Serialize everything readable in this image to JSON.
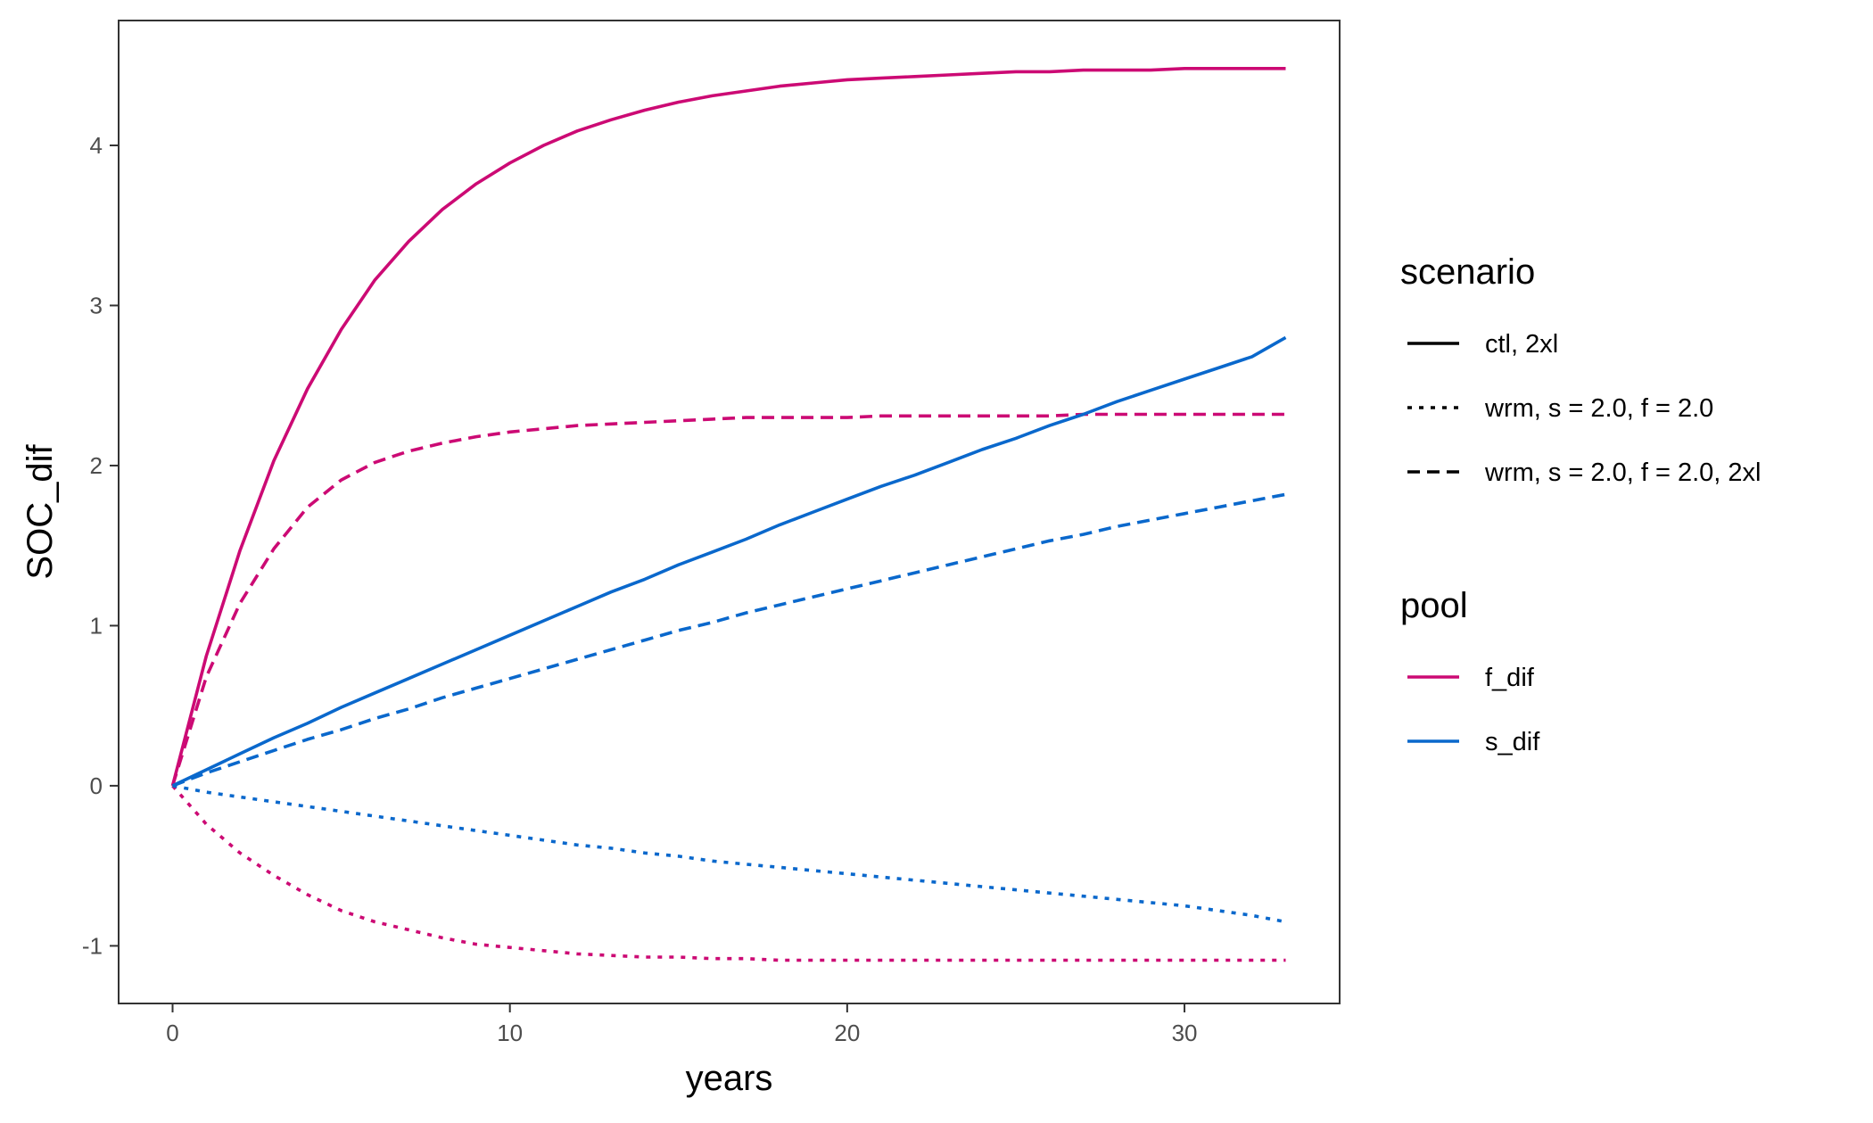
{
  "chart_data": {
    "type": "line",
    "title": "",
    "xlabel": "years",
    "ylabel": "SOC_dif",
    "xlim": [
      -1.6,
      34.6
    ],
    "ylim": [
      -1.36,
      4.78
    ],
    "x_ticks": [
      0,
      10,
      20,
      30
    ],
    "x_tick_labels": [
      "0",
      "10",
      "20",
      "30"
    ],
    "y_ticks": [
      -1,
      0,
      1,
      2,
      3,
      4
    ],
    "y_tick_labels": [
      "-1",
      "0",
      "1",
      "2",
      "3",
      "4"
    ],
    "grid": false,
    "legend_placement": "right",
    "colors": {
      "f_dif": "#cc0a74",
      "s_dif": "#0a68cc",
      "legend_key_linetype": "#000000",
      "axis": "#333333",
      "tick_text": "#4d4d4d"
    },
    "legends": {
      "linetype": {
        "title": "scenario",
        "entries": [
          {
            "label": "ctl, 2xl",
            "style": "solid"
          },
          {
            "label": "wrm, s = 2.0, f = 2.0",
            "style": "dotted"
          },
          {
            "label": "wrm, s = 2.0, f = 2.0, 2xl",
            "style": "dashed"
          }
        ]
      },
      "color": {
        "title": "pool",
        "entries": [
          {
            "label": "f_dif",
            "color": "#cc0a74"
          },
          {
            "label": "s_dif",
            "color": "#0a68cc"
          }
        ]
      }
    },
    "x": [
      0,
      1,
      2,
      3,
      4,
      5,
      6,
      7,
      8,
      9,
      10,
      11,
      12,
      13,
      14,
      15,
      16,
      17,
      18,
      19,
      20,
      21,
      22,
      23,
      24,
      25,
      26,
      27,
      28,
      29,
      30,
      31,
      32,
      33
    ],
    "series": [
      {
        "pool": "f_dif",
        "scenario": "ctl, 2xl",
        "color": "#cc0a74",
        "style": "solid",
        "values": [
          0,
          0.81,
          1.47,
          2.03,
          2.48,
          2.85,
          3.16,
          3.4,
          3.6,
          3.76,
          3.89,
          4.0,
          4.09,
          4.16,
          4.22,
          4.27,
          4.31,
          4.34,
          4.37,
          4.39,
          4.41,
          4.42,
          4.43,
          4.44,
          4.45,
          4.46,
          4.46,
          4.47,
          4.47,
          4.47,
          4.48,
          4.48,
          4.48,
          4.48
        ]
      },
      {
        "pool": "f_dif",
        "scenario": "wrm, s = 2.0, f = 2.0, 2xl",
        "color": "#cc0a74",
        "style": "dashed",
        "values": [
          0,
          0.68,
          1.14,
          1.48,
          1.74,
          1.91,
          2.02,
          2.09,
          2.14,
          2.18,
          2.21,
          2.23,
          2.25,
          2.26,
          2.27,
          2.28,
          2.29,
          2.3,
          2.3,
          2.3,
          2.3,
          2.31,
          2.31,
          2.31,
          2.31,
          2.31,
          2.31,
          2.32,
          2.32,
          2.32,
          2.32,
          2.32,
          2.32,
          2.32
        ]
      },
      {
        "pool": "f_dif",
        "scenario": "wrm, s = 2.0, f = 2.0",
        "color": "#cc0a74",
        "style": "dotted",
        "values": [
          0,
          -0.24,
          -0.42,
          -0.56,
          -0.68,
          -0.78,
          -0.85,
          -0.9,
          -0.95,
          -0.99,
          -1.01,
          -1.03,
          -1.05,
          -1.06,
          -1.07,
          -1.07,
          -1.08,
          -1.08,
          -1.09,
          -1.09,
          -1.09,
          -1.09,
          -1.09,
          -1.09,
          -1.09,
          -1.09,
          -1.09,
          -1.09,
          -1.09,
          -1.09,
          -1.09,
          -1.09,
          -1.09,
          -1.09
        ]
      },
      {
        "pool": "s_dif",
        "scenario": "ctl, 2xl",
        "color": "#0a68cc",
        "style": "solid",
        "values": [
          0,
          0.1,
          0.2,
          0.3,
          0.39,
          0.49,
          0.58,
          0.67,
          0.76,
          0.85,
          0.94,
          1.03,
          1.12,
          1.21,
          1.29,
          1.38,
          1.46,
          1.54,
          1.63,
          1.71,
          1.79,
          1.87,
          1.94,
          2.02,
          2.1,
          2.17,
          2.25,
          2.32,
          2.4,
          2.47,
          2.54,
          2.61,
          2.68,
          2.8
        ]
      },
      {
        "pool": "s_dif",
        "scenario": "wrm, s = 2.0, f = 2.0, 2xl",
        "color": "#0a68cc",
        "style": "dashed",
        "values": [
          0,
          0.08,
          0.15,
          0.22,
          0.29,
          0.35,
          0.42,
          0.48,
          0.55,
          0.61,
          0.67,
          0.73,
          0.79,
          0.85,
          0.91,
          0.97,
          1.02,
          1.08,
          1.13,
          1.18,
          1.23,
          1.28,
          1.33,
          1.38,
          1.43,
          1.48,
          1.53,
          1.57,
          1.62,
          1.66,
          1.7,
          1.74,
          1.78,
          1.82
        ]
      },
      {
        "pool": "s_dif",
        "scenario": "wrm, s = 2.0, f = 2.0",
        "color": "#0a68cc",
        "style": "dotted",
        "values": [
          0,
          -0.04,
          -0.07,
          -0.1,
          -0.13,
          -0.16,
          -0.19,
          -0.22,
          -0.25,
          -0.28,
          -0.31,
          -0.34,
          -0.37,
          -0.39,
          -0.42,
          -0.44,
          -0.47,
          -0.49,
          -0.51,
          -0.53,
          -0.55,
          -0.57,
          -0.59,
          -0.61,
          -0.63,
          -0.65,
          -0.67,
          -0.69,
          -0.71,
          -0.73,
          -0.75,
          -0.78,
          -0.81,
          -0.85
        ]
      }
    ]
  }
}
